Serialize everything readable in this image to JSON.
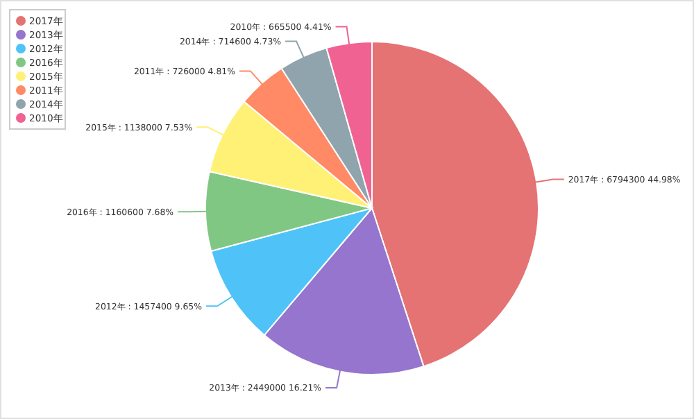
{
  "chart_data": {
    "type": "pie",
    "categories": [
      "2017年",
      "2013年",
      "2012年",
      "2016年",
      "2015年",
      "2011年",
      "2014年",
      "2010年"
    ],
    "values": [
      6794300,
      2449000,
      1457400,
      1160600,
      1138000,
      726000,
      714600,
      665500
    ],
    "colors": [
      "#e57373",
      "#9575cd",
      "#4fc3f7",
      "#81c784",
      "#fff176",
      "#ff8a65",
      "#90a4ae",
      "#f06292"
    ],
    "value_labels": [
      "2017年 : 6794300 44.98%",
      "2013年 : 2449000 16.21%",
      "2012年 : 1457400 9.65%",
      "2016年 : 1160600 7.68%",
      "2015年 : 1138000 7.53%",
      "2011年 : 726000 4.81%",
      "2014年 : 714600 4.73%",
      "2010年 : 665500 4.41%"
    ],
    "legend": "top left"
  }
}
